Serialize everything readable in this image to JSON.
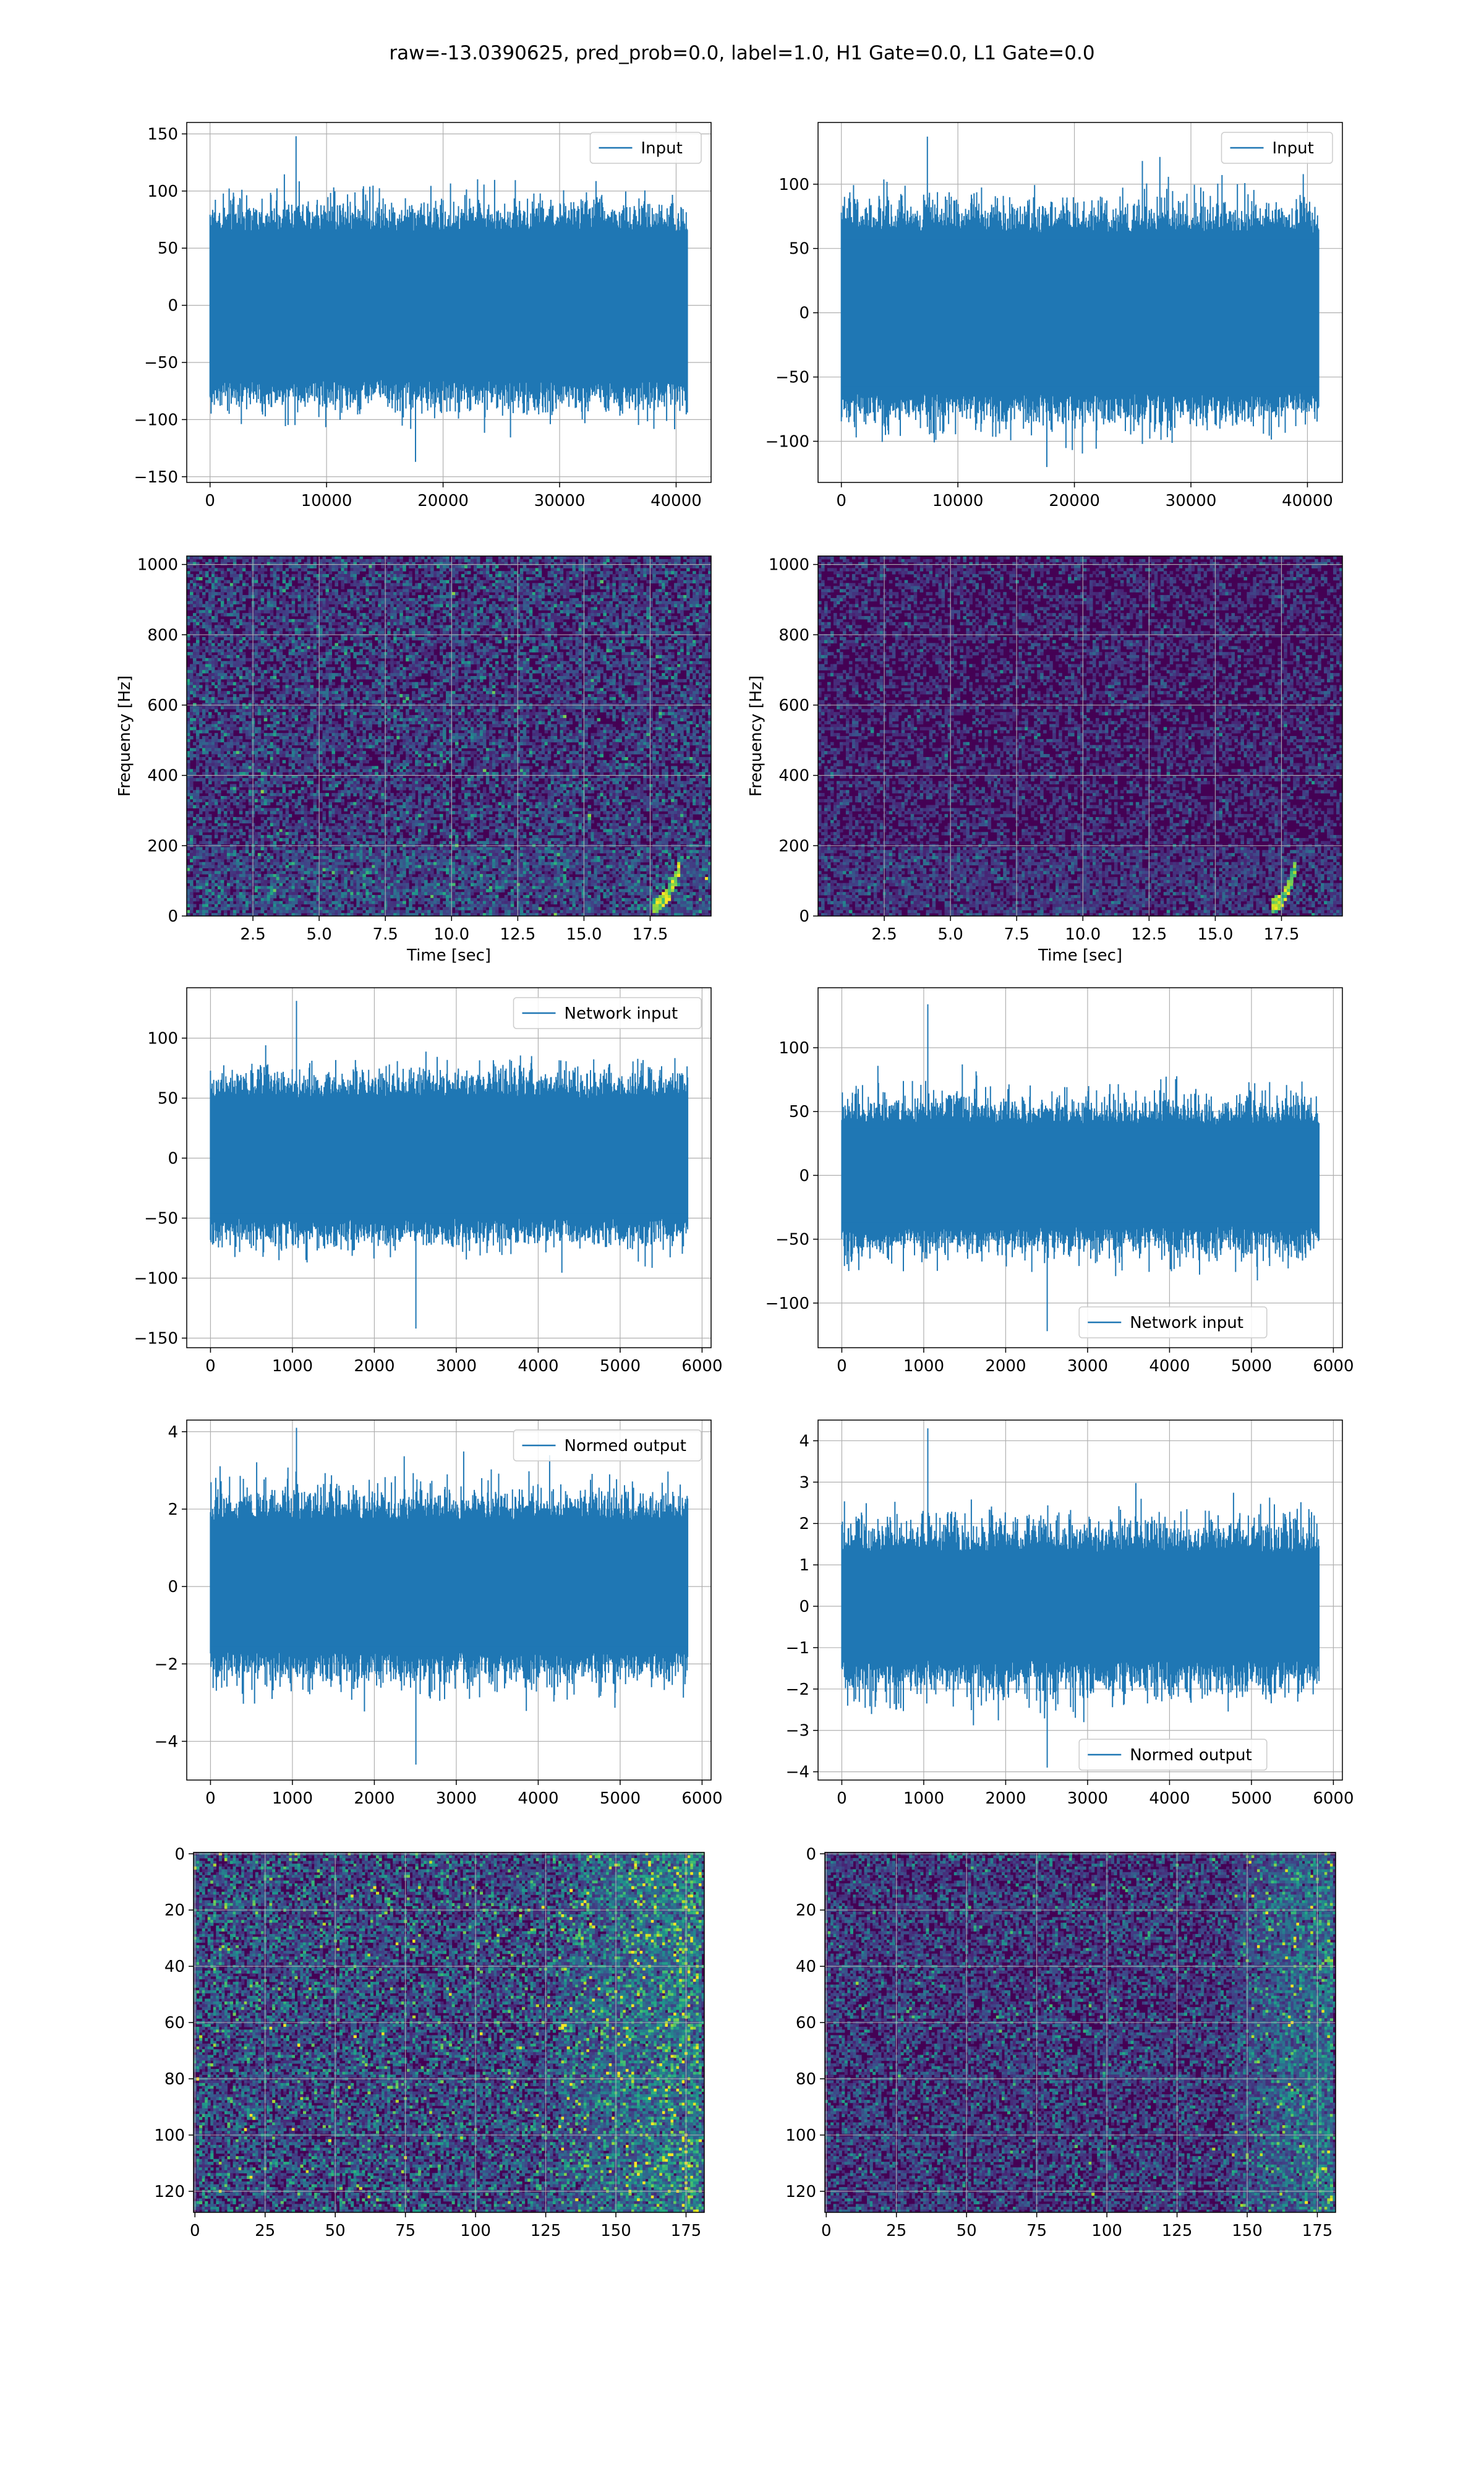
{
  "figure": {
    "suptitle": "raw=-13.0390625, pred_prob=0.0, label=1.0, H1 Gate=0.0, L1 Gate=0.0",
    "colors": {
      "line": "#1f77b4",
      "grid": "#b0b0b0",
      "viridis_dark": "#440154",
      "viridis_mid": "#3b528b",
      "viridis_teal": "#21918c",
      "viridis_green": "#5ec962",
      "viridis_yellow": "#fde725"
    }
  },
  "chart_data": [
    {
      "id": "p1",
      "type": "line",
      "legend": {
        "entries": [
          "Input"
        ],
        "placement": "upper right"
      },
      "xlim": [
        -2000,
        43000
      ],
      "ylim": [
        -155,
        160
      ],
      "xticks": [
        0,
        10000,
        20000,
        30000,
        40000
      ],
      "xtick_labels": [
        "0",
        "10000",
        "20000",
        "30000",
        "40000"
      ],
      "yticks": [
        -150,
        -100,
        -50,
        0,
        50,
        100,
        150
      ],
      "ytick_labels": [
        "−150",
        "−100",
        "−50",
        "0",
        "50",
        "100",
        "150"
      ],
      "grid": true,
      "series": [
        {
          "kind": "noise",
          "x_range": [
            0,
            40960
          ],
          "std": 28,
          "body": 65,
          "peak_max": 148,
          "peak_min": -137,
          "dense": true
        }
      ]
    },
    {
      "id": "p2",
      "type": "line",
      "legend": {
        "entries": [
          "Input"
        ],
        "placement": "upper right"
      },
      "xlim": [
        -2000,
        43000
      ],
      "ylim": [
        -132,
        148
      ],
      "xticks": [
        0,
        10000,
        20000,
        30000,
        40000
      ],
      "xtick_labels": [
        "0",
        "10000",
        "20000",
        "30000",
        "40000"
      ],
      "yticks": [
        -100,
        -50,
        0,
        50,
        100
      ],
      "ytick_labels": [
        "−100",
        "−50",
        "0",
        "50",
        "100"
      ],
      "grid": true,
      "series": [
        {
          "kind": "noise",
          "x_range": [
            0,
            40960
          ],
          "std": 26,
          "body": 62,
          "peak_max": 137,
          "peak_min": -120,
          "dense": true
        }
      ]
    },
    {
      "id": "p3",
      "type": "heatmap",
      "xlabel": "Time [sec]",
      "ylabel": "Frequency [Hz]",
      "xlim": [
        0,
        19.8
      ],
      "ylim": [
        0,
        1024
      ],
      "xticks": [
        2.5,
        5.0,
        7.5,
        10.0,
        12.5,
        15.0,
        17.5
      ],
      "xtick_labels": [
        "2.5",
        "5.0",
        "7.5",
        "10.0",
        "12.5",
        "15.0",
        "17.5"
      ],
      "yticks": [
        0,
        200,
        400,
        600,
        800,
        1000
      ],
      "ytick_labels": [
        "0",
        "200",
        "400",
        "600",
        "800",
        "1000"
      ],
      "grid": true,
      "colormap": "viridis",
      "noise_level": 0.22,
      "chirp": {
        "t_start": 17.6,
        "t_end": 18.65,
        "f_start": 30,
        "f_end": 150
      }
    },
    {
      "id": "p4",
      "type": "heatmap",
      "xlabel": "Time [sec]",
      "ylabel": "Frequency [Hz]",
      "xlim": [
        0,
        19.8
      ],
      "ylim": [
        0,
        1024
      ],
      "xticks": [
        2.5,
        5.0,
        7.5,
        10.0,
        12.5,
        15.0,
        17.5
      ],
      "xtick_labels": [
        "2.5",
        "5.0",
        "7.5",
        "10.0",
        "12.5",
        "15.0",
        "17.5"
      ],
      "yticks": [
        0,
        200,
        400,
        600,
        800,
        1000
      ],
      "ytick_labels": [
        "0",
        "200",
        "400",
        "600",
        "800",
        "1000"
      ],
      "grid": true,
      "colormap": "viridis",
      "noise_level": 0.14,
      "chirp": {
        "t_start": 17.1,
        "t_end": 18.0,
        "f_start": 30,
        "f_end": 130
      }
    },
    {
      "id": "p5",
      "type": "line",
      "legend": {
        "entries": [
          "Network input"
        ],
        "placement": "upper right"
      },
      "xlim": [
        -290,
        6110
      ],
      "ylim": [
        -158,
        142
      ],
      "xticks": [
        0,
        1000,
        2000,
        3000,
        4000,
        5000,
        6000
      ],
      "xtick_labels": [
        "0",
        "1000",
        "2000",
        "3000",
        "4000",
        "5000",
        "6000"
      ],
      "yticks": [
        -150,
        -100,
        -50,
        0,
        50,
        100
      ],
      "ytick_labels": [
        "−150",
        "−100",
        "−50",
        "0",
        "50",
        "100"
      ],
      "grid": true,
      "series": [
        {
          "kind": "noise",
          "x_range": [
            0,
            5824
          ],
          "std": 25,
          "body": 50,
          "peak_max": 131,
          "peak_min": -142,
          "dense": true
        }
      ]
    },
    {
      "id": "p6",
      "type": "line",
      "legend": {
        "entries": [
          "Network input"
        ],
        "placement": "lower center"
      },
      "xlim": [
        -290,
        6110
      ],
      "ylim": [
        -135,
        147
      ],
      "xticks": [
        0,
        1000,
        2000,
        3000,
        4000,
        5000,
        6000
      ],
      "xtick_labels": [
        "0",
        "1000",
        "2000",
        "3000",
        "4000",
        "5000",
        "6000"
      ],
      "yticks": [
        -100,
        -50,
        0,
        50,
        100
      ],
      "ytick_labels": [
        "−100",
        "−50",
        "0",
        "50",
        "100"
      ],
      "grid": true,
      "series": [
        {
          "kind": "noise",
          "x_range": [
            0,
            5824
          ],
          "std": 24,
          "body": 40,
          "peak_max": 134,
          "peak_min": -122,
          "dense": true
        }
      ]
    },
    {
      "id": "p7",
      "type": "line",
      "legend": {
        "entries": [
          "Normed output"
        ],
        "placement": "upper right"
      },
      "xlim": [
        -290,
        6110
      ],
      "ylim": [
        -5.0,
        4.3
      ],
      "xticks": [
        0,
        1000,
        2000,
        3000,
        4000,
        5000,
        6000
      ],
      "xtick_labels": [
        "0",
        "1000",
        "2000",
        "3000",
        "4000",
        "5000",
        "6000"
      ],
      "yticks": [
        -4,
        -2,
        0,
        2,
        4
      ],
      "ytick_labels": [
        "−4",
        "−2",
        "0",
        "2",
        "4"
      ],
      "grid": true,
      "series": [
        {
          "kind": "noise",
          "x_range": [
            0,
            5824
          ],
          "std": 0.85,
          "body": 1.7,
          "peak_max": 4.1,
          "peak_min": -4.6,
          "dense": true
        }
      ]
    },
    {
      "id": "p8",
      "type": "line",
      "legend": {
        "entries": [
          "Normed output"
        ],
        "placement": "lower center"
      },
      "xlim": [
        -290,
        6110
      ],
      "ylim": [
        -4.2,
        4.5
      ],
      "xticks": [
        0,
        1000,
        2000,
        3000,
        4000,
        5000,
        6000
      ],
      "xtick_labels": [
        "0",
        "1000",
        "2000",
        "3000",
        "4000",
        "5000",
        "6000"
      ],
      "yticks": [
        -4,
        -3,
        -2,
        -1,
        0,
        1,
        2,
        3,
        4
      ],
      "ytick_labels": [
        "−4",
        "−3",
        "−2",
        "−1",
        "0",
        "1",
        "2",
        "3",
        "4"
      ],
      "grid": true,
      "series": [
        {
          "kind": "noise",
          "x_range": [
            0,
            5824
          ],
          "std": 0.85,
          "body": 1.3,
          "peak_max": 4.3,
          "peak_min": -3.9,
          "dense": true
        }
      ]
    },
    {
      "id": "p9",
      "type": "heatmap",
      "xlim": [
        -0.5,
        181.5
      ],
      "ylim": [
        127.5,
        -0.5
      ],
      "y_inverted": true,
      "xticks": [
        0,
        25,
        50,
        75,
        100,
        125,
        150,
        175
      ],
      "xtick_labels": [
        "0",
        "25",
        "50",
        "75",
        "100",
        "125",
        "150",
        "175"
      ],
      "yticks": [
        0,
        20,
        40,
        60,
        80,
        100,
        120
      ],
      "ytick_labels": [
        "0",
        "20",
        "40",
        "60",
        "80",
        "100",
        "120"
      ],
      "grid": true,
      "colormap": "viridis",
      "matrix_shape": [
        128,
        182
      ],
      "noise_level": 0.3,
      "bright_band": [
        130,
        180
      ]
    },
    {
      "id": "p10",
      "type": "heatmap",
      "xlim": [
        -0.5,
        181.5
      ],
      "ylim": [
        127.5,
        -0.5
      ],
      "y_inverted": true,
      "xticks": [
        0,
        25,
        50,
        75,
        100,
        125,
        150,
        175
      ],
      "xtick_labels": [
        "0",
        "25",
        "50",
        "75",
        "100",
        "125",
        "150",
        "175"
      ],
      "yticks": [
        0,
        20,
        40,
        60,
        80,
        100,
        120
      ],
      "ytick_labels": [
        "0",
        "20",
        "40",
        "60",
        "80",
        "100",
        "120"
      ],
      "grid": true,
      "colormap": "viridis",
      "matrix_shape": [
        128,
        182
      ],
      "noise_level": 0.22,
      "bright_band": [
        145,
        180
      ]
    }
  ]
}
